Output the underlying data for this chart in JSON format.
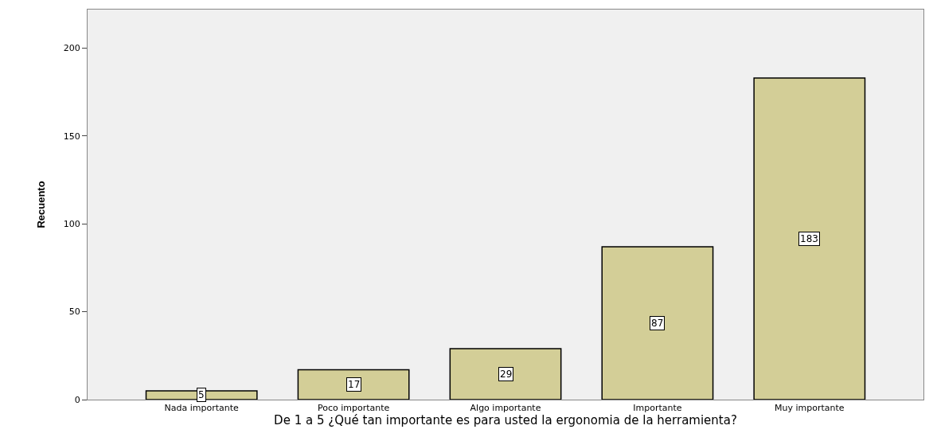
{
  "chart_data": {
    "type": "bar",
    "xlabel": "De 1 a 5 ¿Qué tan importante es para usted la ergonomia de la herramienta?",
    "ylabel": "Recuento",
    "categories": [
      "Nada importante",
      "Poco importante",
      "Algo importante",
      "Importante",
      "Muy importante"
    ],
    "values": [
      5,
      17,
      29,
      87,
      183
    ],
    "color": "#d3ce97",
    "ylim": [
      0,
      222
    ],
    "yticks": [
      0,
      50,
      100,
      150,
      200
    ],
    "grid": false,
    "legend": false,
    "data_labels": true
  }
}
